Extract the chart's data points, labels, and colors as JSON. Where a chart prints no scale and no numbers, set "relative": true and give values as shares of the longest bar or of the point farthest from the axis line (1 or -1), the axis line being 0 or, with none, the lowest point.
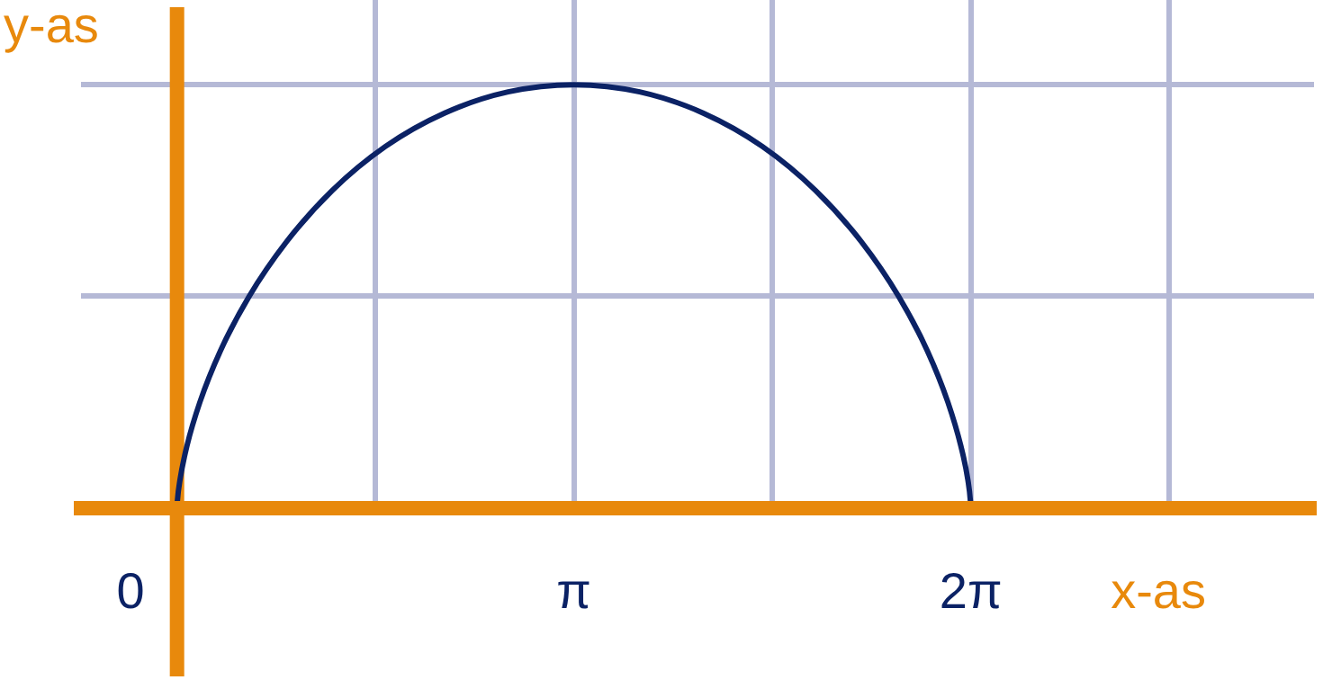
{
  "chart_data": {
    "type": "line",
    "relative": true,
    "xlabel": "x-as",
    "ylabel": "y-as",
    "xlim": [
      -0.76,
      9.0
    ],
    "xticks": [
      {
        "value": 0,
        "label": "0"
      },
      {
        "value": 1.5708,
        "label": null
      },
      {
        "value": 3.1416,
        "label": "π"
      },
      {
        "value": 4.7124,
        "label": null
      },
      {
        "value": 6.2832,
        "label": "2π"
      },
      {
        "value": 7.854,
        "label": null
      }
    ],
    "ref_lines": [
      {
        "axis": "x",
        "value": 0,
        "color": "#e8890c"
      }
    ],
    "grid": true,
    "legend": false,
    "marker": "none",
    "line_style": "solid",
    "series": [
      {
        "color": "#0b2265",
        "x": [
          0,
          0.003,
          0.024,
          0.078,
          0.181,
          0.343,
          0.571,
          0.867,
          1.228,
          1.649,
          2.118,
          2.621,
          3.142,
          3.662,
          4.165,
          4.634,
          5.055,
          5.417,
          5.712,
          5.94,
          6.102,
          6.205,
          6.26,
          6.28,
          6.283
        ],
        "values": [
          0,
          0.017,
          0.067,
          0.146,
          0.25,
          0.371,
          0.5,
          0.629,
          0.75,
          0.854,
          0.933,
          0.983,
          1,
          0.983,
          0.933,
          0.854,
          0.75,
          0.629,
          0.5,
          0.371,
          0.25,
          0.146,
          0.067,
          0.017,
          0
        ]
      }
    ]
  }
}
